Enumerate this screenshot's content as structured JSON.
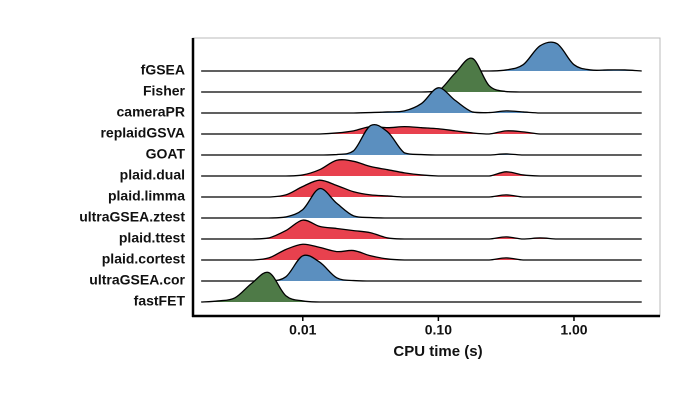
{
  "chart_data": {
    "type": "ridgeline",
    "xlabel": "CPU time (s)",
    "log_x": true,
    "xlim": [
      0.00155,
      4.31
    ],
    "xticks": [
      0.01,
      {
        "value": 0.1,
        "label": "0.10"
      },
      {
        "value": 1,
        "label": "1.00"
      }
    ],
    "categories": [
      "fGSEA",
      "Fisher",
      "cameraPR",
      "replaidGSVA",
      "GOAT",
      "plaid.dual",
      "plaid.limma",
      "ultraGSEA.ztest",
      "plaid.ttest",
      "plaid.cortest",
      "ultraGSEA.cor",
      "fastFET"
    ],
    "x": [
      0.00178,
      0.00237,
      0.00316,
      0.00422,
      0.00562,
      0.0075,
      0.01,
      0.0133,
      0.0178,
      0.0237,
      0.0316,
      0.0422,
      0.0562,
      0.075,
      0.1,
      0.133,
      0.178,
      0.237,
      0.316,
      0.422,
      0.562,
      0.75,
      1,
      1.33,
      1.78,
      2.37,
      3.16
    ],
    "series": [
      {
        "color": "#5b8fbf",
        "values": [
          0,
          0,
          0,
          0,
          0,
          0,
          0,
          0,
          0,
          0,
          0,
          0,
          0,
          0,
          0,
          0,
          0,
          0,
          0.05,
          0.3,
          1.2,
          1.3,
          0.3,
          0.05,
          0.05,
          0.05,
          0
        ]
      },
      {
        "color": "#4e7a47",
        "values": [
          0,
          0,
          0,
          0,
          0,
          0,
          0,
          0,
          0,
          0,
          0,
          0,
          0,
          0,
          0.05,
          0.9,
          1.6,
          0.3,
          0.02,
          0,
          0,
          0,
          0,
          0,
          0,
          0,
          0
        ]
      },
      {
        "color": "#5b8fbf",
        "values": [
          0,
          0,
          0,
          0,
          0,
          0,
          0,
          0,
          0,
          0,
          0.02,
          0.05,
          0.1,
          0.45,
          1.2,
          0.6,
          0.05,
          0.02,
          0.1,
          0.05,
          0,
          0,
          0,
          0,
          0,
          0,
          0
        ]
      },
      {
        "color": "#e8414e",
        "values": [
          0,
          0,
          0,
          0,
          0,
          0,
          0,
          0,
          0.05,
          0.15,
          0.35,
          0.3,
          0.35,
          0.3,
          0.25,
          0.15,
          0.05,
          0,
          0.15,
          0.1,
          0,
          0,
          0,
          0,
          0,
          0,
          0
        ]
      },
      {
        "color": "#5b8fbf",
        "values": [
          0,
          0,
          0,
          0,
          0,
          0,
          0,
          0,
          0.02,
          0.2,
          1.4,
          1.1,
          0.1,
          0.02,
          0,
          0,
          0,
          0,
          0.05,
          0,
          0,
          0,
          0,
          0,
          0,
          0,
          0
        ]
      },
      {
        "color": "#e8414e",
        "values": [
          0,
          0,
          0,
          0,
          0,
          0,
          0.05,
          0.3,
          0.75,
          0.7,
          0.45,
          0.3,
          0.15,
          0.05,
          0,
          0,
          0,
          0,
          0.2,
          0.05,
          0,
          0,
          0,
          0,
          0,
          0,
          0
        ]
      },
      {
        "color": "#e8414e",
        "values": [
          0,
          0,
          0,
          0,
          0,
          0.1,
          0.5,
          0.8,
          0.55,
          0.25,
          0.1,
          0.05,
          0,
          0,
          0,
          0,
          0,
          0,
          0.1,
          0,
          0,
          0,
          0,
          0,
          0,
          0,
          0
        ]
      },
      {
        "color": "#5b8fbf",
        "values": [
          0,
          0,
          0,
          0,
          0,
          0.05,
          0.4,
          1.4,
          0.7,
          0.1,
          0.02,
          0,
          0,
          0,
          0,
          0,
          0,
          0,
          0,
          0,
          0,
          0,
          0,
          0,
          0,
          0,
          0
        ]
      },
      {
        "color": "#e8414e",
        "values": [
          0,
          0,
          0,
          0,
          0.05,
          0.4,
          0.9,
          0.6,
          0.5,
          0.4,
          0.3,
          0.05,
          0,
          0,
          0,
          0,
          0,
          0,
          0.1,
          0,
          0.05,
          0,
          0,
          0,
          0,
          0,
          0
        ]
      },
      {
        "color": "#e8414e",
        "values": [
          0,
          0,
          0,
          0,
          0.1,
          0.5,
          0.75,
          0.6,
          0.4,
          0.45,
          0.2,
          0.05,
          0,
          0,
          0,
          0,
          0,
          0,
          0.1,
          0,
          0,
          0,
          0,
          0,
          0,
          0,
          0
        ]
      },
      {
        "color": "#5b8fbf",
        "values": [
          0,
          0,
          0,
          0,
          0,
          0.2,
          1.2,
          0.9,
          0.15,
          0.02,
          0,
          0,
          0,
          0,
          0,
          0,
          0,
          0,
          0,
          0,
          0,
          0,
          0,
          0,
          0,
          0,
          0
        ]
      },
      {
        "color": "#4e7a47",
        "values": [
          0,
          0.05,
          0.2,
          0.9,
          1.4,
          0.3,
          0.05,
          0,
          0,
          0,
          0,
          0,
          0,
          0,
          0,
          0,
          0,
          0,
          0,
          0,
          0,
          0,
          0,
          0,
          0,
          0,
          0
        ]
      }
    ]
  }
}
